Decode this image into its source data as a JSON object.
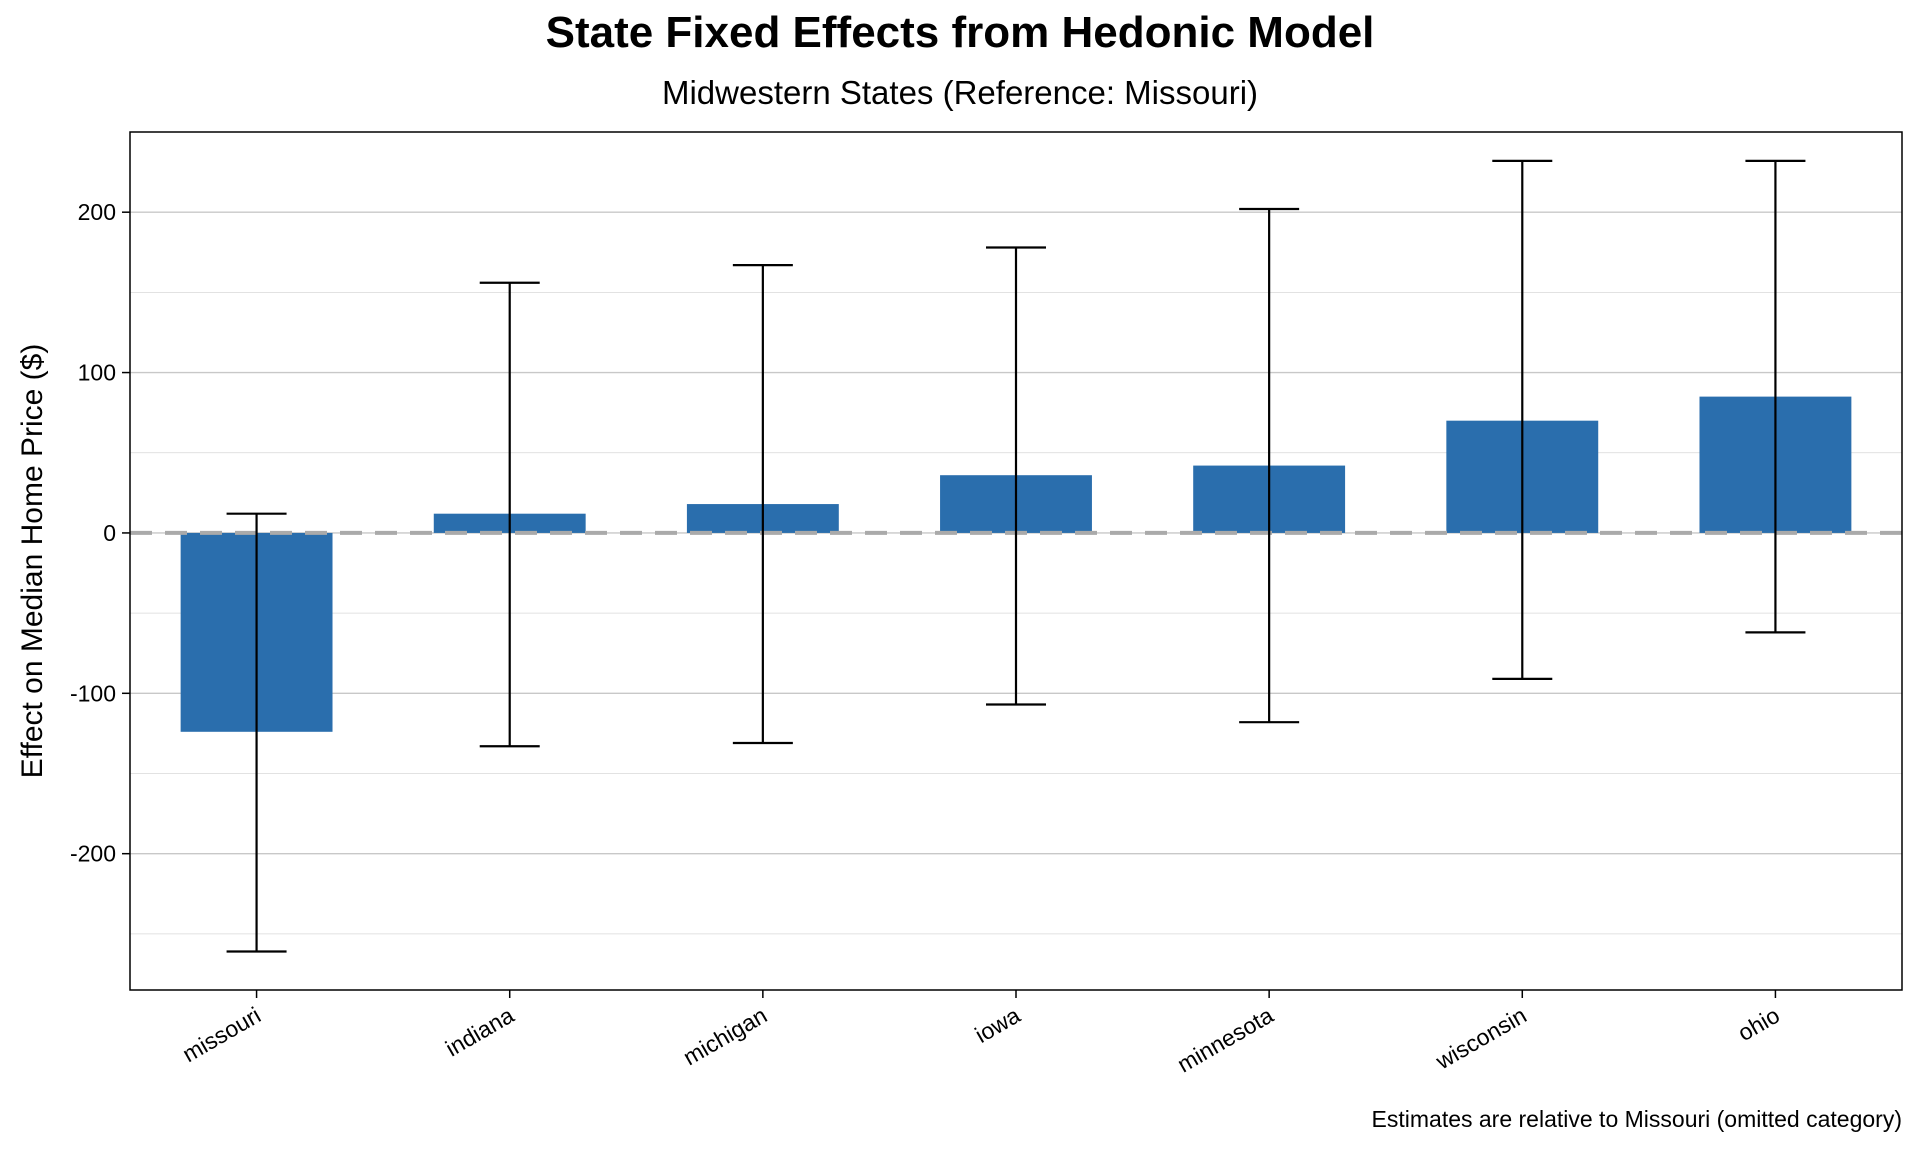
{
  "chart_data": {
    "type": "bar",
    "title": "State Fixed Effects from Hedonic Model",
    "subtitle": "Midwestern States (Reference: Missouri)",
    "ylabel": "Effect on Median Home Price ($)",
    "xlabel": "",
    "caption": "Estimates are relative to Missouri (omitted category)",
    "categories": [
      "missouri",
      "indiana",
      "michigan",
      "iowa",
      "minnesota",
      "wisconsin",
      "ohio"
    ],
    "values": [
      -124,
      12,
      18,
      36,
      42,
      70,
      85
    ],
    "error_low": [
      -261,
      -133,
      -131,
      -107,
      -118,
      -91,
      -62
    ],
    "error_high": [
      12,
      156,
      167,
      178,
      202,
      232,
      232
    ],
    "ylim": [
      -285,
      250
    ],
    "yticks": [
      -200,
      -100,
      0,
      100,
      200
    ],
    "ytick_labels": [
      "-200",
      "-100",
      "0",
      "100",
      "200"
    ],
    "reference_line": 0,
    "grid": true,
    "colors": {
      "bar": "#2a6ead",
      "errorbar": "#000000",
      "reference": "#aaaaaa",
      "grid": "#c8c8c8"
    }
  }
}
